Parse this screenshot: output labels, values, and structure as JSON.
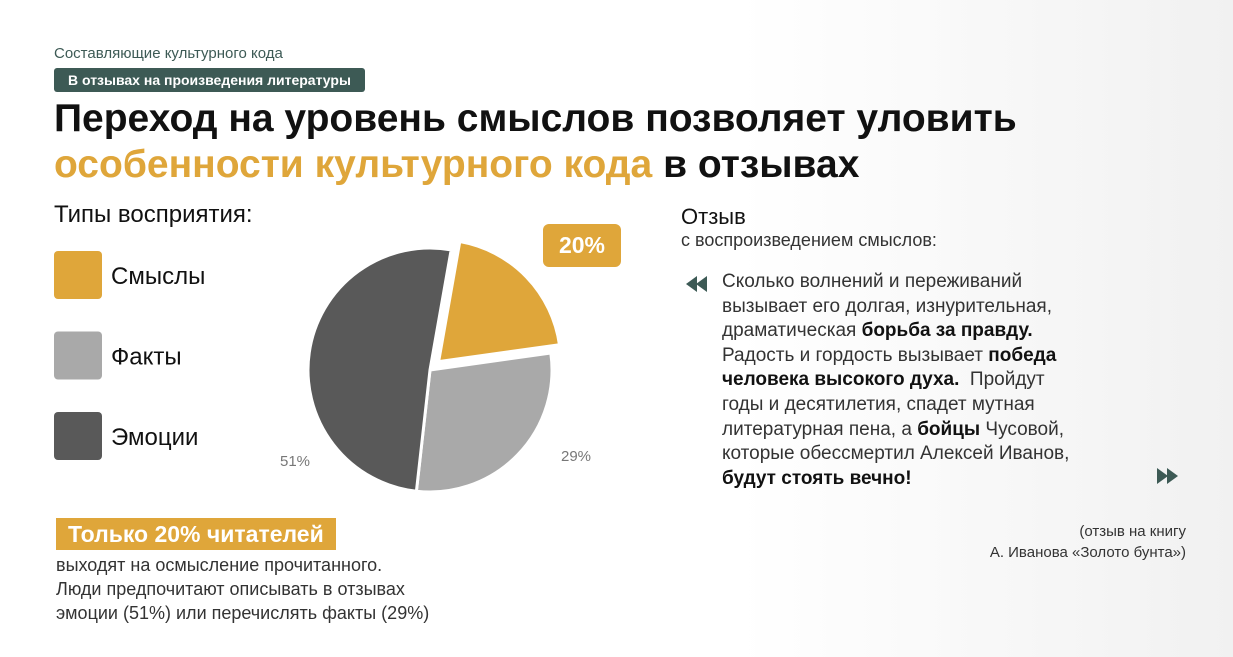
{
  "header": {
    "subtitle": "Составляющие культурного кода",
    "tag": "В отзывах на произведения литературы",
    "title": [
      [
        {
          "text": "Переход на уровень смыслов позволяет уловить",
          "accent": false
        }
      ],
      [
        {
          "text": "особенности культурного кода",
          "accent": true
        },
        {
          "text": " в отзывах",
          "accent": false
        }
      ]
    ]
  },
  "legend_title": "Типы восприятия:",
  "chart_data": {
    "type": "pie",
    "categories": [
      "Смыслы",
      "Факты",
      "Эмоции"
    ],
    "values": [
      20,
      29,
      51
    ],
    "value_labels": [
      "20%",
      "29%",
      "51%"
    ],
    "colors": [
      "#dfa63a",
      "#a9a9a9",
      "#595959"
    ],
    "exploded": 0
  },
  "conclusion": {
    "highlight": "Только 20% читателей",
    "lines": [
      "выходят на осмысление прочитанного.",
      "Люди предпочитают описывать в отзывах",
      "эмоции (51%) или перечислять факты (29%)"
    ]
  },
  "review": {
    "title": "Отзыв",
    "subtitle": "с воспроизведением смыслов:",
    "lines": [
      [
        {
          "text": "Сколько волнений и переживаний",
          "bold": false
        }
      ],
      [
        {
          "text": "вызывает его долгая, изнурительная,",
          "bold": false
        }
      ],
      [
        {
          "text": "драматическая ",
          "bold": false
        },
        {
          "text": "борьба за правду.",
          "bold": true
        }
      ],
      [
        {
          "text": "Радость и гордость вызывает ",
          "bold": false
        },
        {
          "text": "победа",
          "bold": true
        }
      ],
      [
        {
          "text": "человека высокого духа.",
          "bold": true
        },
        {
          "text": "  Пройдут",
          "bold": false
        }
      ],
      [
        {
          "text": "годы и десятилетия, спадет мутная",
          "bold": false
        }
      ],
      [
        {
          "text": "литературная пена, а ",
          "bold": false
        },
        {
          "text": "бойцы",
          "bold": true
        },
        {
          "text": " Чусовой,",
          "bold": false
        }
      ],
      [
        {
          "text": "которые обессмертил Алексей Иванов,",
          "bold": false
        }
      ],
      [
        {
          "text": "будут стоять вечно!",
          "bold": true
        }
      ]
    ],
    "source": [
      "(отзыв на книгу",
      "А. Иванова «Золото бунта»)"
    ]
  }
}
